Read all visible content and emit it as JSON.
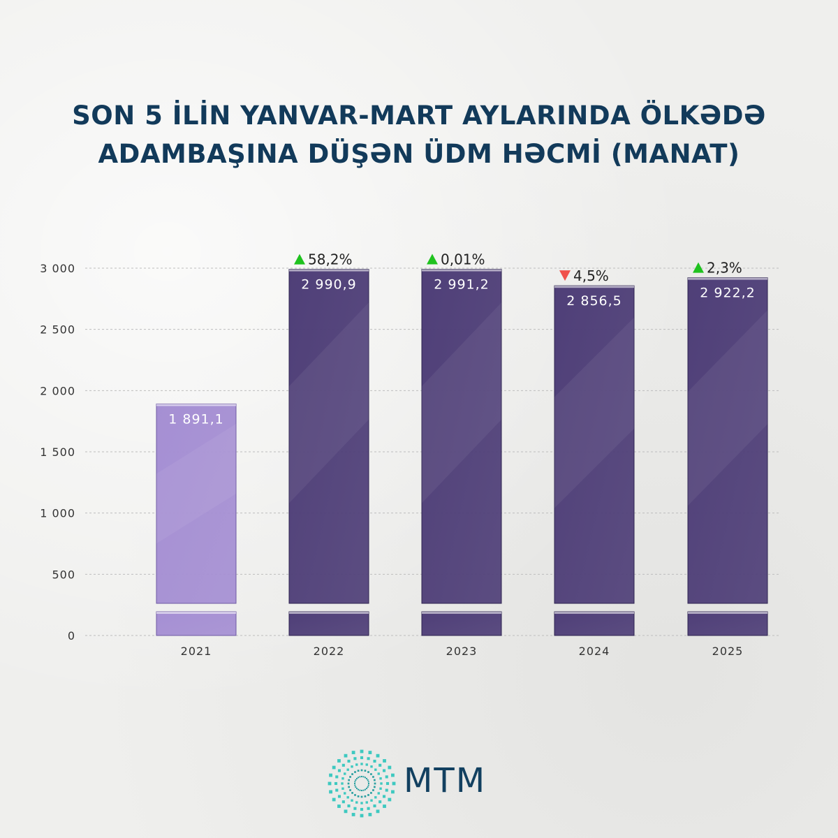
{
  "title": {
    "line1": "SON 5 İLİN YANVAR-MART AYLARINDA ÖLKƏDƏ",
    "line2": "ADAMBAŞINA DÜŞƏN ÜDM HƏCMİ (MANAT)"
  },
  "chart_data": {
    "type": "bar",
    "title": "SON 5 İLİN YANVAR-MART AYLARINDA ÖLKƏDƏ ADAMBAŞINA DÜŞƏN ÜDM HƏCMİ (MANAT)",
    "categories": [
      "2021",
      "2022",
      "2023",
      "2024",
      "2025"
    ],
    "values": [
      1891.1,
      2990.9,
      2991.2,
      2856.5,
      2922.2
    ],
    "value_labels": [
      "1 891,1",
      "2 990,9",
      "2 991,2",
      "2 856,5",
      "2 922,2"
    ],
    "changes": [
      null,
      {
        "label": "58,2%",
        "direction": "up"
      },
      {
        "label": "0,01%",
        "direction": "up"
      },
      {
        "label": "4,5%",
        "direction": "down"
      },
      {
        "label": "2,3%",
        "direction": "up"
      }
    ],
    "y_ticks": [
      0,
      500,
      1000,
      1500,
      2000,
      2500,
      3000
    ],
    "y_tick_labels": [
      "0",
      "500",
      "1 000",
      "1 500",
      "2 000",
      "2 500",
      "3 000"
    ],
    "ylim": [
      0,
      3000
    ],
    "grid": true,
    "axis_break": true,
    "colors": {
      "first_bar": "#a58fd3",
      "bars": "#4f3f78",
      "up": "#1fc21f",
      "down": "#f0504a",
      "title": "#123a5a"
    }
  },
  "logo": {
    "text": "MTM",
    "icon": "mtm-starburst-icon"
  }
}
